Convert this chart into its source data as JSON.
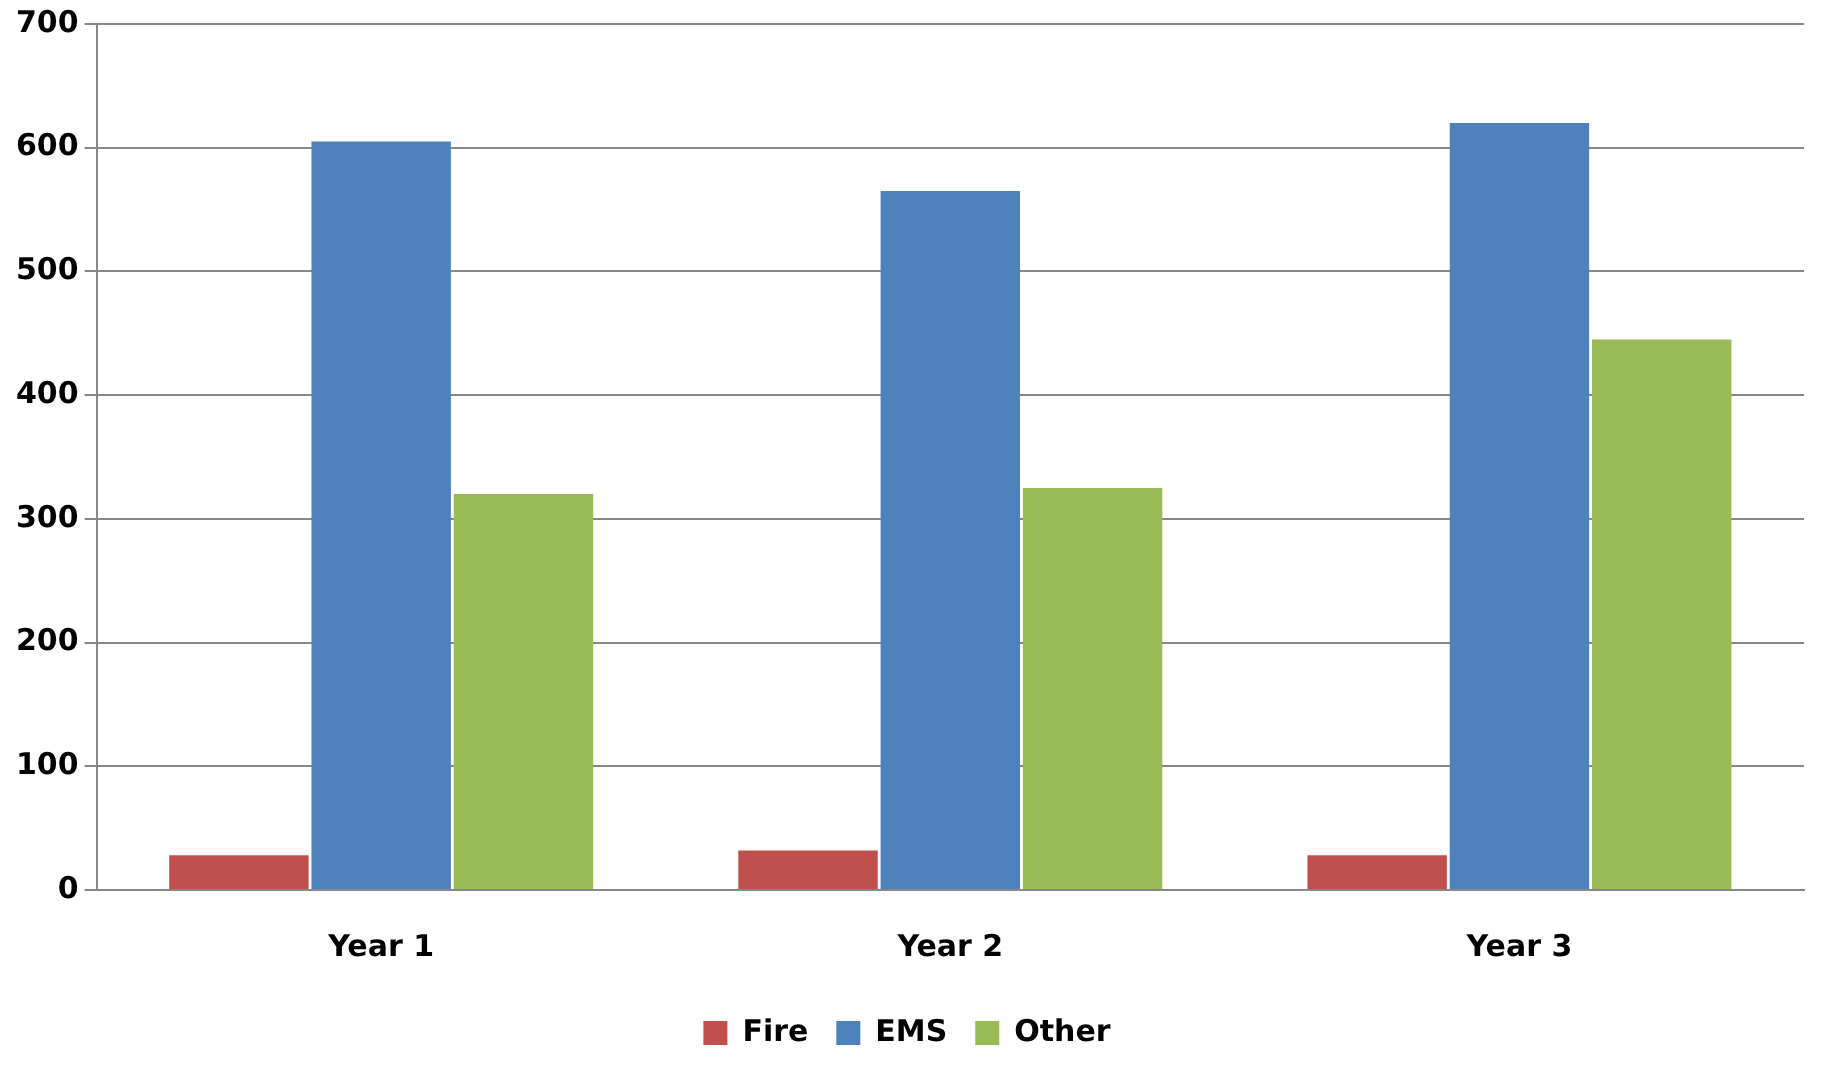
{
  "chart_data": {
    "type": "bar",
    "categories": [
      "Year 1",
      "Year 2",
      "Year 3"
    ],
    "series": [
      {
        "name": "Fire",
        "color": "#c0504d",
        "values": [
          28,
          32,
          28
        ]
      },
      {
        "name": "EMS",
        "color": "#4f81bd",
        "values": [
          605,
          565,
          620
        ]
      },
      {
        "name": "Other",
        "color": "#9bbb59",
        "values": [
          320,
          325,
          445
        ]
      }
    ],
    "ylim": [
      0,
      700
    ],
    "yticks": [
      0,
      100,
      200,
      300,
      400,
      500,
      600,
      700
    ],
    "grid": "y",
    "legend": "bottom"
  }
}
